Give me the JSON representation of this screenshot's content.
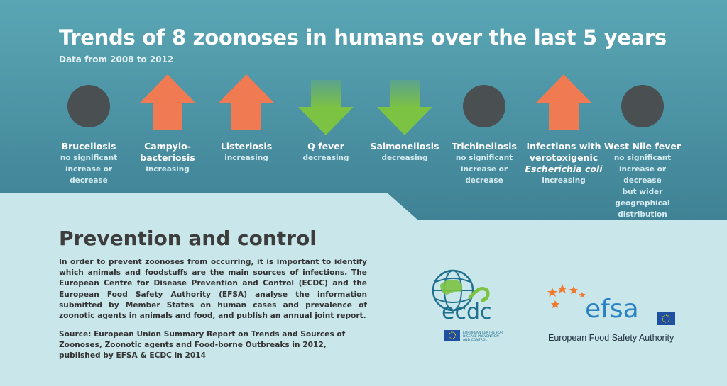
{
  "header": {
    "title": "Trends of 8 zoonoses in humans over the last 5 years",
    "subtitle": "Data from 2008 to 2012"
  },
  "trends": [
    {
      "name": "Brucellosis",
      "trend": "none",
      "desc1": "no significant",
      "desc2": "increase or decrease"
    },
    {
      "name": "Campylo-",
      "name2": "bacteriosis",
      "trend": "up",
      "desc1": "increasing"
    },
    {
      "name": "Listeriosis",
      "trend": "up",
      "desc1": "increasing"
    },
    {
      "name": "Q fever",
      "trend": "down",
      "desc1": "decreasing"
    },
    {
      "name": "Salmonellosis",
      "trend": "down",
      "desc1": "decreasing"
    },
    {
      "name": "Trichinellosis",
      "trend": "none",
      "desc1": "no significant",
      "desc2": "increase or decrease"
    },
    {
      "name": "Infections with",
      "name2": "verotoxigenic",
      "name3": "Escherichia coli",
      "trend": "up",
      "desc1": "increasing"
    },
    {
      "name": "West Nile fever",
      "trend": "none",
      "desc1": "no significant",
      "desc2": "increase or decrease",
      "desc3": "but wider geographical",
      "desc4": "distribution"
    }
  ],
  "prevention": {
    "title": "Prevention and control",
    "body": "In order to prevent zoonoses from occurring, it is important to identify which animals and foodstuffs are the main sources of infections. The European Centre for Disease Prevention and Control (ECDC) and the European Food Safety Authority (EFSA) analyse the information submitted by Member States on human cases and prevalence of zoonotic agents in animals and food, and publish an annual joint report.",
    "source": "Source: European Union Summary Report on Trends and Sources of Zoonoses, Zoonotic agents and Food-borne Outbreaks in 2012, published by EFSA & ECDC in 2014"
  },
  "logos": {
    "ecdc_word": "ecdc",
    "ecdc_line1": "EUROPEAN CENTRE FOR",
    "ecdc_line2": "DISEASE PREVENTION",
    "ecdc_line3": "AND CONTROL",
    "efsa_word": "efsa",
    "efsa_caption": "European Food Safety Authority"
  },
  "colors": {
    "band_top": "#5aa6b5",
    "band_bottom": "#3e7f93",
    "up_arrow": "#f07a52",
    "down_arrow": "#7cc243",
    "neutral_circle": "#4a4f52",
    "ecdc_blue": "#1f6f8f",
    "ecdc_green": "#7cc243",
    "efsa_blue": "#2a82c4",
    "efsa_star": "#f07a30"
  }
}
